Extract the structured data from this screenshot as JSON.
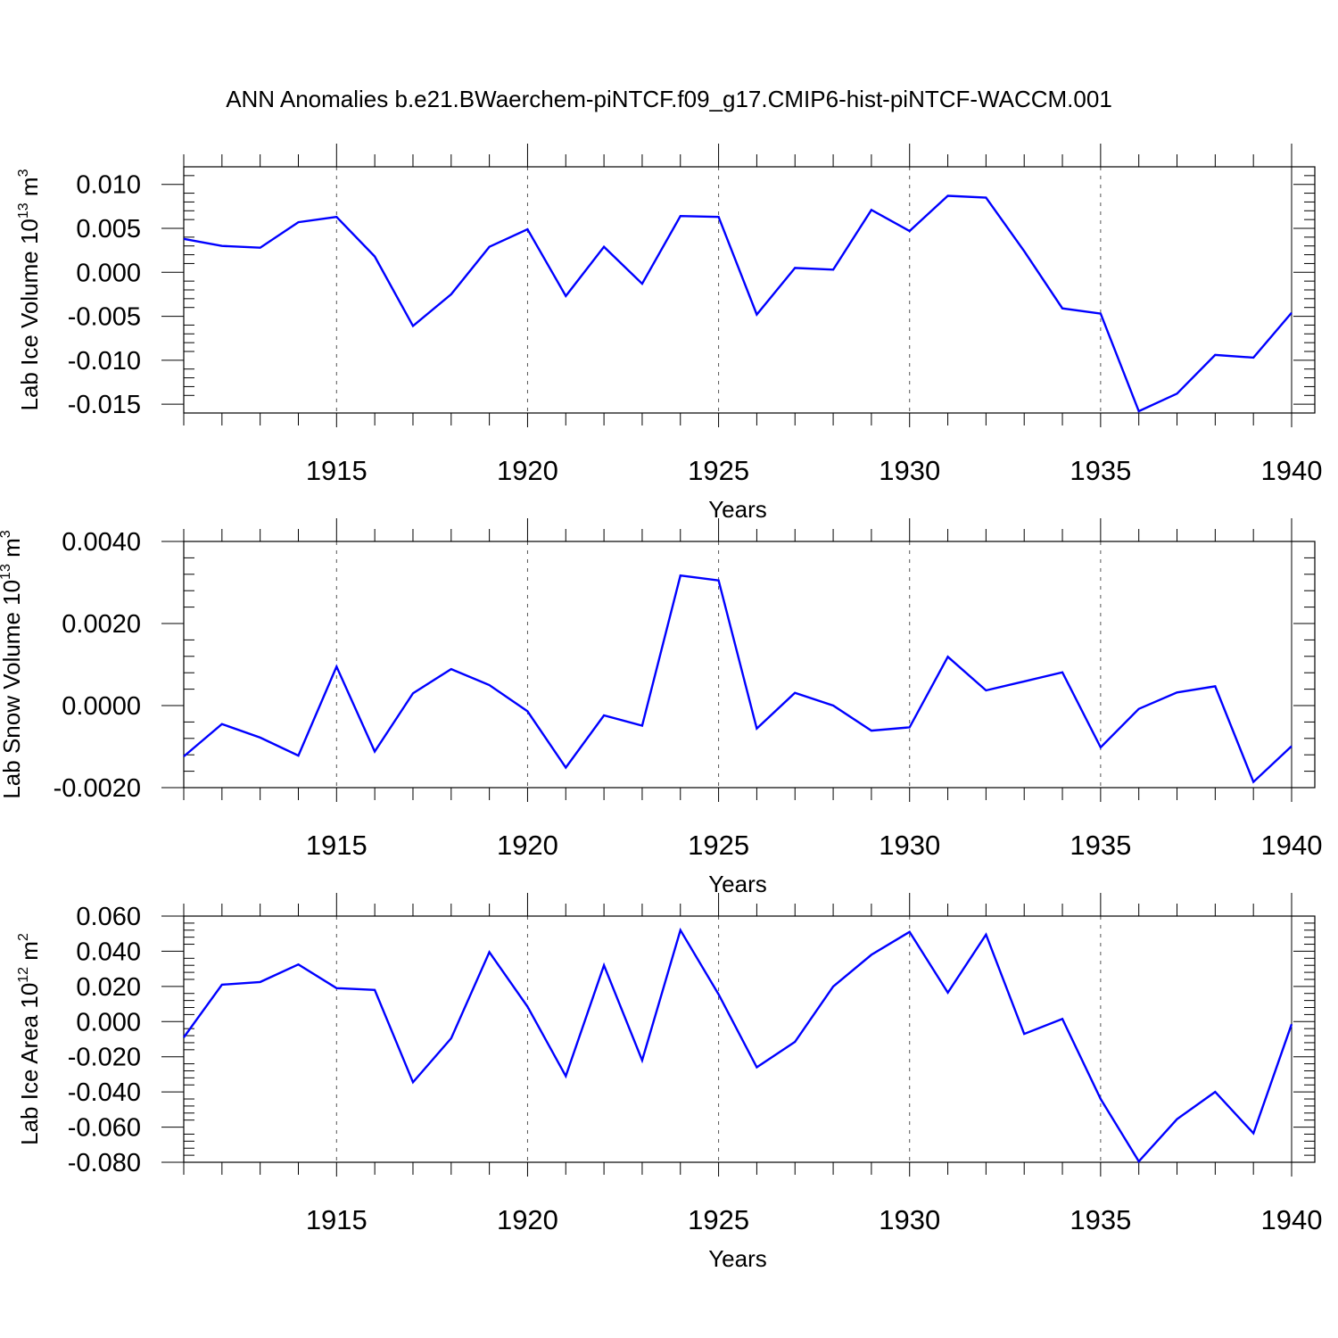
{
  "figure": {
    "title": "ANN Anomalies b.e21.BWaerchem-piNTCF.f09_g17.CMIP6-hist-piNTCF-WACCM.001",
    "line_color": "#0000ff"
  },
  "chart_data": [
    {
      "type": "line",
      "title": "",
      "xlabel": "Years",
      "ylabel": "Lab Ice Volume 10^13 m^3",
      "ylabel_base": "Lab Ice Volume 10",
      "ylabel_exp": "13",
      "ylabel_unit": " m",
      "ylabel_unit_exp": "3",
      "xlim": [
        1911,
        1940
      ],
      "ylim": [
        -0.016,
        0.012
      ],
      "yticks": [
        0.01,
        0.005,
        0.0,
        -0.005,
        -0.01,
        -0.015
      ],
      "ytick_labels": [
        "0.010",
        "0.005",
        "0.000",
        "-0.005",
        "-0.010",
        "-0.015"
      ],
      "xticks": [
        1915,
        1920,
        1925,
        1930,
        1935,
        1940
      ],
      "xtick_labels": [
        "1915",
        "1920",
        "1925",
        "1930",
        "1935",
        "1940"
      ],
      "grid": "vertical dashed at major x ticks",
      "series": [
        {
          "x": [
            1911,
            1912,
            1913,
            1914,
            1915,
            1916,
            1917,
            1918,
            1919,
            1920,
            1921,
            1922,
            1923,
            1924,
            1925,
            1926,
            1927,
            1928,
            1929,
            1930,
            1931,
            1932,
            1933,
            1934,
            1935,
            1936,
            1937,
            1938,
            1939,
            1940
          ],
          "values": [
            0.0038,
            0.003,
            0.0028,
            0.0057,
            0.0063,
            0.0018,
            -0.0061,
            -0.0025,
            0.0029,
            0.0049,
            -0.0027,
            0.0029,
            -0.0013,
            0.0064,
            0.0063,
            -0.0048,
            0.0005,
            0.0003,
            0.0071,
            0.0047,
            0.0087,
            0.0085,
            0.0024,
            -0.0041,
            -0.0047,
            -0.0158,
            -0.0138,
            -0.0094,
            -0.0097,
            -0.0046
          ]
        }
      ]
    },
    {
      "type": "line",
      "title": "",
      "xlabel": "Years",
      "ylabel": "Lab Snow Volume 10^13 m^3",
      "ylabel_base": "Lab Snow Volume 10",
      "ylabel_exp": "13",
      "ylabel_unit": " m",
      "ylabel_unit_exp": "3",
      "xlim": [
        1911,
        1940
      ],
      "ylim": [
        -0.002,
        0.004
      ],
      "yticks": [
        0.004,
        0.002,
        0.0,
        -0.002
      ],
      "ytick_labels": [
        "0.0040",
        "0.0020",
        "0.0000",
        "-0.0020"
      ],
      "xticks": [
        1915,
        1920,
        1925,
        1930,
        1935,
        1940
      ],
      "xtick_labels": [
        "1915",
        "1920",
        "1925",
        "1930",
        "1935",
        "1940"
      ],
      "grid": "vertical dashed at major x ticks",
      "series": [
        {
          "x": [
            1911,
            1912,
            1913,
            1914,
            1915,
            1916,
            1917,
            1918,
            1919,
            1920,
            1921,
            1922,
            1923,
            1924,
            1925,
            1926,
            1927,
            1928,
            1929,
            1930,
            1931,
            1932,
            1933,
            1934,
            1935,
            1936,
            1937,
            1938,
            1939,
            1940
          ],
          "values": [
            -0.00124,
            -0.00045,
            -0.00078,
            -0.00122,
            0.00095,
            -0.00112,
            0.0003,
            0.00089,
            0.0005,
            -0.00014,
            -0.00151,
            -0.00024,
            -0.00049,
            0.00317,
            0.00305,
            -0.00056,
            0.00031,
            0.0,
            -0.00061,
            -0.00053,
            0.00119,
            0.00037,
            0.00059,
            0.00081,
            -0.00102,
            -8e-05,
            0.00032,
            0.00047,
            -0.00186,
            -0.00099
          ]
        }
      ]
    },
    {
      "type": "line",
      "title": "",
      "xlabel": "Years",
      "ylabel": "Lab Ice Area 10^12 m^2",
      "ylabel_base": "Lab Ice Area 10",
      "ylabel_exp": "12",
      "ylabel_unit": " m",
      "ylabel_unit_exp": "2",
      "xlim": [
        1911,
        1940
      ],
      "ylim": [
        -0.08,
        0.06
      ],
      "yticks": [
        0.06,
        0.04,
        0.02,
        0.0,
        -0.02,
        -0.04,
        -0.06,
        -0.08
      ],
      "ytick_labels": [
        "0.060",
        "0.040",
        "0.020",
        "0.000",
        "-0.020",
        "-0.040",
        "-0.060",
        "-0.080"
      ],
      "xticks": [
        1915,
        1920,
        1925,
        1930,
        1935,
        1940
      ],
      "xtick_labels": [
        "1915",
        "1920",
        "1925",
        "1930",
        "1935",
        "1940"
      ],
      "grid": "vertical dashed at major x ticks",
      "series": [
        {
          "x": [
            1911,
            1912,
            1913,
            1914,
            1915,
            1916,
            1917,
            1918,
            1919,
            1920,
            1921,
            1922,
            1923,
            1924,
            1925,
            1926,
            1927,
            1928,
            1929,
            1930,
            1931,
            1932,
            1933,
            1934,
            1935,
            1936,
            1937,
            1938,
            1939,
            1940
          ],
          "values": [
            -0.009,
            0.021,
            0.0225,
            0.0325,
            0.019,
            0.018,
            -0.0345,
            -0.0095,
            0.0395,
            0.0085,
            -0.031,
            0.032,
            -0.022,
            0.052,
            0.0155,
            -0.026,
            -0.0115,
            0.02,
            0.038,
            0.051,
            0.0165,
            0.0495,
            -0.007,
            0.0015,
            -0.044,
            -0.0795,
            -0.0555,
            -0.04,
            -0.0635,
            -0.0015
          ]
        }
      ]
    }
  ]
}
